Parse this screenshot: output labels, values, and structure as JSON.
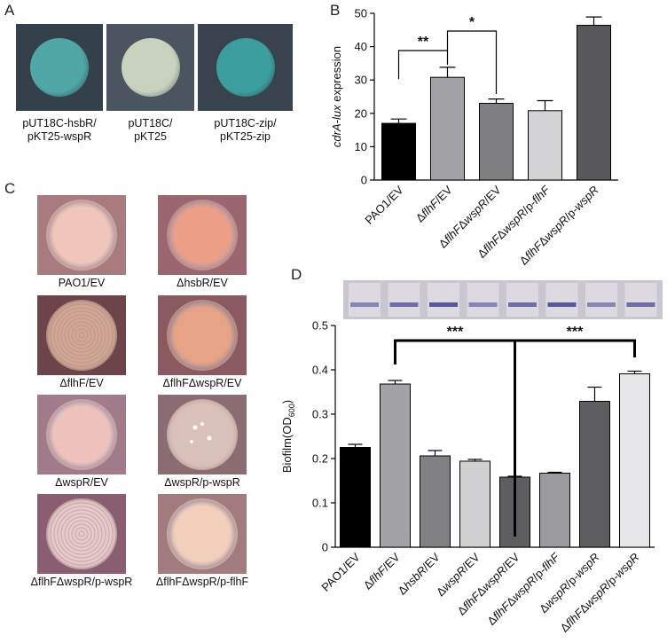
{
  "figure": {
    "panel_a": {
      "letter": "A",
      "images": [
        {
          "caption_line1": "pUT18C-hsbR/",
          "caption_line2": "pKT25-wspR",
          "colony_color": "#4fa7a6",
          "bg_color": "#35414a"
        },
        {
          "caption_line1": "pUT18C/",
          "caption_line2": "pKT25",
          "colony_color": "#c9d2bf",
          "bg_color": "#4b5560"
        },
        {
          "caption_line1": "pUT18C-zip/",
          "caption_line2": "pKT25-zip",
          "colony_color": "#3c9f9f",
          "bg_color": "#38434d"
        }
      ]
    },
    "panel_b": {
      "letter": "B"
    },
    "panel_c": {
      "letter": "C",
      "images": [
        {
          "caption": "PAO1/EV",
          "colony_color": "#f0c6bb",
          "bg_color": "#a97b7e",
          "texture": "smooth"
        },
        {
          "caption": "ΔhsbR/EV",
          "colony_color": "#ec9e86",
          "bg_color": "#9a6670",
          "texture": "smooth"
        },
        {
          "caption": "ΔflhF/EV",
          "colony_color": "#d4a68e",
          "bg_color": "#6d4449",
          "texture": "wrinkled"
        },
        {
          "caption": "ΔflhFΔwspR/EV",
          "colony_color": "#e6a386",
          "bg_color": "#8a5a60",
          "texture": "smooth"
        },
        {
          "caption": "ΔwspR/EV",
          "colony_color": "#efc3bd",
          "bg_color": "#a27b8a",
          "texture": "smooth"
        },
        {
          "caption": "ΔwspR/p-wspR",
          "colony_color": "#d9c0b8",
          "bg_color": "#8a6c72",
          "texture": "spotted"
        },
        {
          "caption": "ΔflhFΔwspR/p-wspR",
          "colony_color": "#e8c9c7",
          "bg_color": "#8b5d70",
          "texture": "wrinkled"
        },
        {
          "caption": "ΔflhFΔwspR/p-flhF",
          "colony_color": "#f1cfbb",
          "bg_color": "#a17b7e",
          "texture": "smooth"
        }
      ]
    },
    "panel_d": {
      "letter": "D",
      "strip_bg": "#c9c6cf",
      "band_color": "#3f3f8f"
    }
  },
  "chart_data": [
    {
      "type": "bar",
      "categories": [
        "PAO1/EV",
        "ΔflhF/EV",
        "ΔflhFΔwspR/EV",
        "ΔflhFΔwspR/p-flhF",
        "ΔflhFΔwspR/p-wspR"
      ],
      "values": [
        17,
        30.8,
        23,
        20.8,
        46.4
      ],
      "errors": [
        1.3,
        3,
        1.3,
        3,
        2.5
      ],
      "colors": [
        "#000000",
        "#a3a3a7",
        "#7f7f82",
        "#d2d2d4",
        "#58585b"
      ],
      "ylabel": "cdrA-lux expression",
      "ylim": [
        0,
        50
      ],
      "yticks": [
        0,
        10,
        20,
        30,
        40,
        50
      ],
      "annotations": [
        {
          "from": 0,
          "to": 1,
          "label": "**"
        },
        {
          "from": 1,
          "to": 2,
          "label": "*"
        }
      ]
    },
    {
      "type": "bar",
      "categories": [
        "PAO1/EV",
        "ΔflhF/EV",
        "ΔhsbR/EV",
        "ΔwspR/EV",
        "ΔflhFΔwspR/EV",
        "ΔflhFΔwspR/p-flhF",
        "ΔwspR/p-wspR",
        "ΔflhFΔwspR/p-wspR"
      ],
      "values": [
        0.225,
        0.368,
        0.206,
        0.194,
        0.158,
        0.167,
        0.329,
        0.391
      ],
      "errors": [
        0.007,
        0.008,
        0.012,
        0.004,
        0.002,
        0.002,
        0.032,
        0.006
      ],
      "colors": [
        "#000000",
        "#a3a3a7",
        "#818184",
        "#d0d0d2",
        "#5e5e61",
        "#9b9b9f",
        "#5e5e61",
        "#e6e6e8"
      ],
      "ylabel": "Biofilm(OD600)",
      "ylim": [
        0,
        0.5
      ],
      "yticks": [
        "0",
        "0.1",
        "0.2",
        "0.3",
        "0.4",
        "0.5"
      ],
      "annotations": [
        {
          "from": 1,
          "to": 4,
          "label": "***"
        },
        {
          "from": 4,
          "to": 7,
          "label": "***"
        }
      ]
    }
  ]
}
